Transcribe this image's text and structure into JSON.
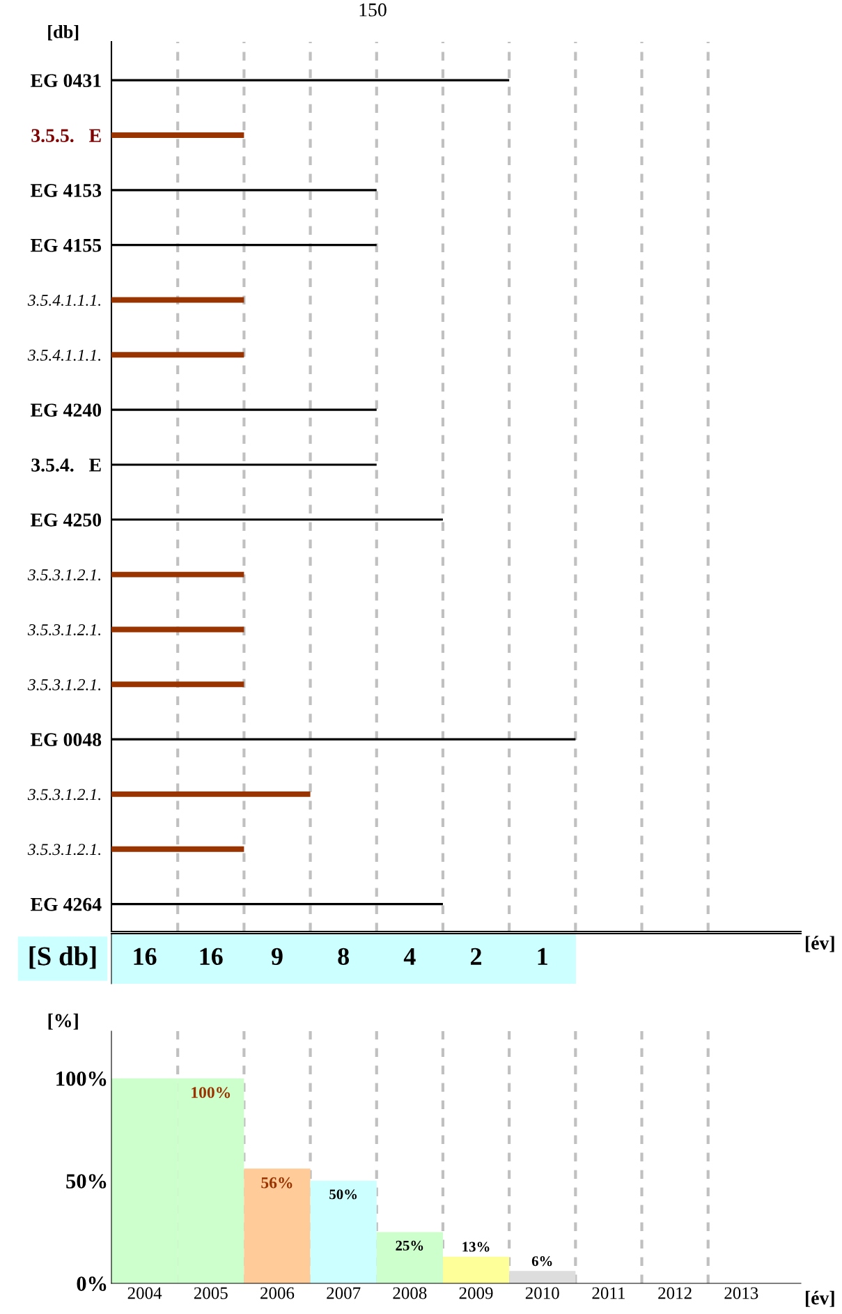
{
  "chart_data": [
    {
      "type": "bar",
      "orientation": "horizontal",
      "ylabel": "[db]",
      "xlabel": "[év]",
      "annotations": [
        "150"
      ],
      "categories": [
        "EG 0431",
        "3.5.5.   E",
        "EG 4153",
        "EG 4155",
        "3.5.4.1.1.1.",
        "3.5.4.1.1.1.",
        "EG 4240",
        "3.5.4.   E",
        "EG 4250",
        "3.5.3.1.2.1.",
        "3.5.3.1.2.1.",
        "3.5.3.1.2.1.",
        "EG 0048",
        "3.5.3.1.2.1.",
        "3.5.3.1.2.1.",
        "EG 4264"
      ],
      "series": [
        {
          "color": "#000000",
          "base": [
            2004,
            null,
            2004,
            2004,
            null,
            null,
            2004,
            2004,
            2004,
            null,
            null,
            null,
            2004,
            null,
            null,
            2004
          ],
          "values": [
            6,
            null,
            4,
            4,
            null,
            null,
            4,
            4,
            5,
            null,
            null,
            null,
            7,
            null,
            null,
            5
          ]
        },
        {
          "color": "#993300",
          "base": [
            null,
            2004,
            null,
            null,
            2004,
            2004,
            null,
            null,
            null,
            2004,
            2004,
            2004,
            null,
            2004,
            2004,
            null
          ],
          "values": [
            null,
            2,
            null,
            null,
            2,
            2,
            null,
            null,
            null,
            2,
            2,
            2,
            null,
            3,
            2,
            null
          ]
        }
      ],
      "xlim": [
        2004,
        2014.4
      ],
      "tick_labels": "y",
      "grid": false,
      "ref_lines": [
        {
          "axis": "x",
          "value": 2005,
          "color": "#c0c0c0",
          "line_style": "dashed"
        },
        {
          "axis": "x",
          "value": 2006,
          "color": "#c0c0c0",
          "line_style": "dashed"
        },
        {
          "axis": "x",
          "value": 2007,
          "color": "#c0c0c0",
          "line_style": "dashed"
        },
        {
          "axis": "x",
          "value": 2008,
          "color": "#c0c0c0",
          "line_style": "dashed"
        },
        {
          "axis": "x",
          "value": 2009,
          "color": "#c0c0c0",
          "line_style": "dashed"
        },
        {
          "axis": "x",
          "value": 2010,
          "color": "#c0c0c0",
          "line_style": "dashed"
        },
        {
          "axis": "x",
          "value": 2011,
          "color": "#c0c0c0",
          "line_style": "dashed"
        },
        {
          "axis": "x",
          "value": 2012,
          "color": "#c0c0c0",
          "line_style": "dashed"
        },
        {
          "axis": "x",
          "value": 2013,
          "color": "#c0c0c0",
          "line_style": "dashed"
        }
      ]
    },
    {
      "type": "other",
      "ylabel": "[S db]",
      "categories": [
        null,
        null,
        null,
        null,
        null,
        null,
        null
      ],
      "values": [
        16,
        16,
        9,
        8,
        4,
        2,
        1
      ],
      "data_labels": true,
      "color": "#ccffff"
    },
    {
      "type": "bar",
      "ylabel": "[%]",
      "xlabel": "[év]",
      "x": [
        2004.5,
        2005.5,
        2006.5,
        2007.5,
        2008.5,
        2009.5,
        2010.5
      ],
      "values": [
        100,
        100,
        56,
        50,
        25,
        13,
        6
      ],
      "colors": [
        "#ccffcc",
        "#ccffcc",
        "#ffcc99",
        "#ccffff",
        "#ccffcc",
        "#ffff99",
        "#dddddd"
      ],
      "value_labels": [
        null,
        "100%",
        "56%",
        "50%",
        "25%",
        "13%",
        "6%"
      ],
      "xlim": [
        2004,
        2014.4
      ],
      "ylim": [
        0,
        123
      ],
      "xticks": [
        {
          "value": 2004.5,
          "label": "2004"
        },
        {
          "value": 2005.5,
          "label": "2005"
        },
        {
          "value": 2006.5,
          "label": "2006"
        },
        {
          "value": 2007.5,
          "label": "2007"
        },
        {
          "value": 2008.5,
          "label": "2008"
        },
        {
          "value": 2009.5,
          "label": "2009"
        },
        {
          "value": 2010.5,
          "label": "2010"
        },
        {
          "value": 2011.5,
          "label": "2011"
        },
        {
          "value": 2012.5,
          "label": "2012"
        },
        {
          "value": 2013.5,
          "label": "2013"
        }
      ],
      "yticks": [
        {
          "value": 0,
          "label": "0%"
        },
        {
          "value": 50,
          "label": "50%"
        },
        {
          "value": 100,
          "label": "100%"
        }
      ],
      "grid": false,
      "ref_lines": [
        {
          "axis": "x",
          "value": 2005,
          "color": "#c0c0c0",
          "line_style": "dashed"
        },
        {
          "axis": "x",
          "value": 2006,
          "color": "#c0c0c0",
          "line_style": "dashed"
        },
        {
          "axis": "x",
          "value": 2007,
          "color": "#c0c0c0",
          "line_style": "dashed"
        },
        {
          "axis": "x",
          "value": 2008,
          "color": "#c0c0c0",
          "line_style": "dashed"
        },
        {
          "axis": "x",
          "value": 2009,
          "color": "#c0c0c0",
          "line_style": "dashed"
        },
        {
          "axis": "x",
          "value": 2010,
          "color": "#c0c0c0",
          "line_style": "dashed"
        },
        {
          "axis": "x",
          "value": 2011,
          "color": "#c0c0c0",
          "line_style": "dashed"
        },
        {
          "axis": "x",
          "value": 2012,
          "color": "#c0c0c0",
          "line_style": "dashed"
        },
        {
          "axis": "x",
          "value": 2013,
          "color": "#c0c0c0",
          "line_style": "dashed"
        }
      ]
    }
  ]
}
